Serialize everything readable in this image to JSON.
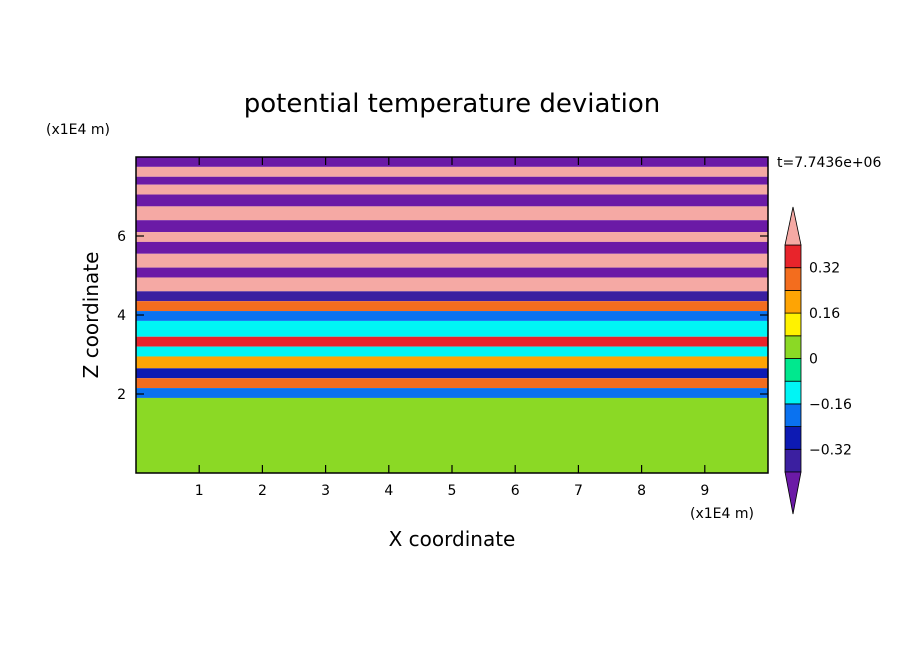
{
  "chart_data": {
    "type": "heatmap",
    "title": "potential temperature deviation",
    "xlabel": "X coordinate",
    "ylabel": "Z coordinate",
    "x_unit": "(x1E4 m)",
    "y_unit": "(x1E4 m)",
    "time_label": "t=7.7436e+06",
    "xlim": [
      0,
      10
    ],
    "ylim": [
      0,
      8
    ],
    "x_ticks": [
      1,
      2,
      3,
      4,
      5,
      6,
      7,
      8,
      9
    ],
    "y_ticks": [
      2,
      4,
      6
    ],
    "x_tick_labels": [
      "1",
      "2",
      "3",
      "4",
      "5",
      "6",
      "7",
      "8",
      "9"
    ],
    "y_tick_labels": [
      "2",
      "4",
      "6"
    ],
    "colorbar": {
      "levels": [
        -0.48,
        -0.4,
        -0.32,
        -0.24,
        -0.16,
        -0.08,
        0,
        0.08,
        0.16,
        0.24,
        0.32,
        0.4,
        0.48
      ],
      "tick_labels": [
        {
          "value": 0.32,
          "label": "0.32"
        },
        {
          "value": 0.16,
          "label": "0.16"
        },
        {
          "value": 0,
          "label": "0"
        },
        {
          "value": -0.16,
          "label": "−0.16"
        },
        {
          "value": -0.32,
          "label": "−0.32"
        }
      ],
      "colors_high_to_low": [
        "#f5a9a4",
        "#e8242b",
        "#f36d1e",
        "#fea404",
        "#fff200",
        "#8bd925",
        "#00e88e",
        "#00f5f5",
        "#0a72f0",
        "#0d1ab3",
        "#3b1fa0",
        "#6b1aa6"
      ]
    },
    "bands": [
      {
        "z": [
          7.75,
          8.0
        ],
        "value": -0.45
      },
      {
        "z": [
          7.5,
          7.75
        ],
        "value": 0.45
      },
      {
        "z": [
          7.3,
          7.5
        ],
        "value": -0.45
      },
      {
        "z": [
          7.05,
          7.3
        ],
        "value": 0.45
      },
      {
        "z": [
          6.75,
          7.05
        ],
        "value": -0.45
      },
      {
        "z": [
          6.4,
          6.75
        ],
        "value": 0.45
      },
      {
        "z": [
          6.1,
          6.4
        ],
        "value": -0.45
      },
      {
        "z": [
          5.85,
          6.1
        ],
        "value": 0.45
      },
      {
        "z": [
          5.55,
          5.85
        ],
        "value": -0.45
      },
      {
        "z": [
          5.2,
          5.55
        ],
        "value": 0.45
      },
      {
        "z": [
          4.95,
          5.2
        ],
        "value": -0.45
      },
      {
        "z": [
          4.6,
          4.95
        ],
        "value": 0.45
      },
      {
        "z": [
          4.35,
          4.6
        ],
        "value": -0.35
      },
      {
        "z": [
          4.1,
          4.35
        ],
        "value": 0.3
      },
      {
        "z": [
          3.85,
          4.1
        ],
        "value": -0.2
      },
      {
        "z": [
          3.45,
          3.85
        ],
        "value": -0.1
      },
      {
        "z": [
          3.2,
          3.45
        ],
        "value": 0.35
      },
      {
        "z": [
          2.95,
          3.2
        ],
        "value": -0.1
      },
      {
        "z": [
          2.65,
          2.95
        ],
        "value": 0.2
      },
      {
        "z": [
          2.4,
          2.65
        ],
        "value": -0.3
      },
      {
        "z": [
          2.15,
          2.4
        ],
        "value": 0.3
      },
      {
        "z": [
          1.9,
          2.15
        ],
        "value": -0.2
      },
      {
        "z": [
          0.0,
          1.9
        ],
        "value": 0.02
      }
    ]
  }
}
